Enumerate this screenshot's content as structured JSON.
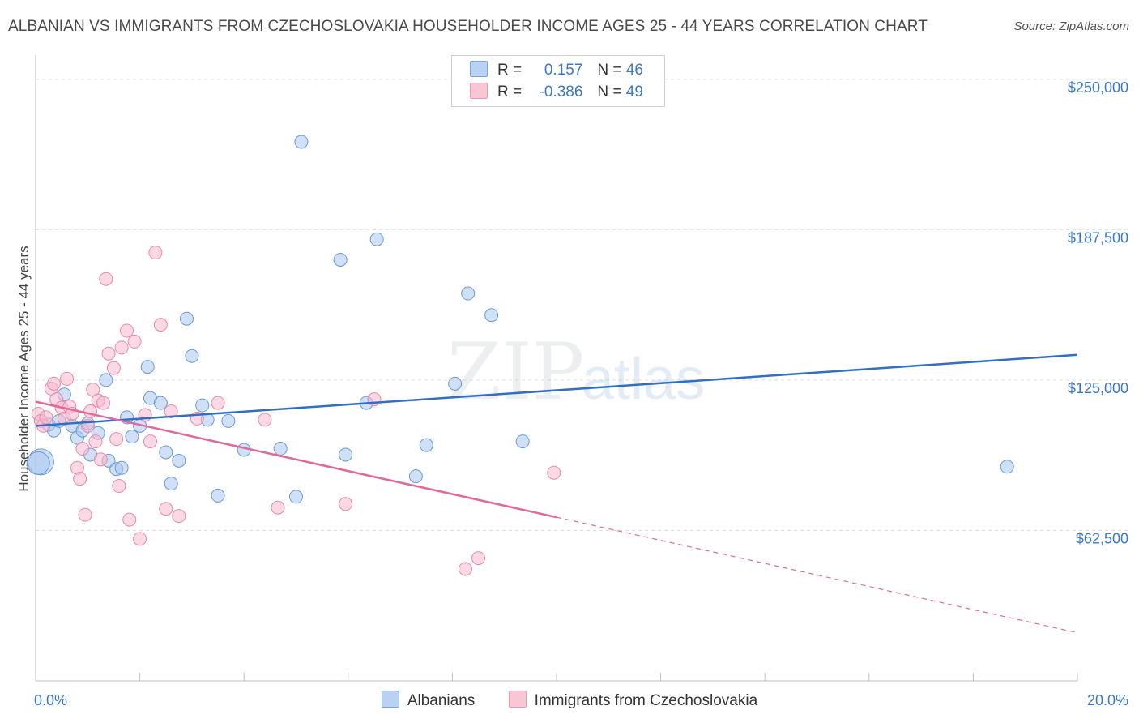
{
  "chart_data": {
    "type": "scatter",
    "title": "ALBANIAN VS IMMIGRANTS FROM CZECHOSLOVAKIA HOUSEHOLDER INCOME AGES 25 - 44 YEARS CORRELATION CHART",
    "source": "Source: ZipAtlas.com",
    "xlabel": "",
    "ylabel": "Householder Income Ages 25 - 44 years",
    "xlim": [
      0,
      20
    ],
    "ylim": [
      0,
      256000
    ],
    "x_tick_labels": {
      "min": "0.0%",
      "max": "20.0%"
    },
    "y_ticks": [
      {
        "value": 62500,
        "label": "$62,500"
      },
      {
        "value": 125000,
        "label": "$125,000"
      },
      {
        "value": 187500,
        "label": "$187,500"
      },
      {
        "value": 250000,
        "label": "$250,000"
      }
    ],
    "grid": true,
    "watermark": "ZIPatlas",
    "legend": {
      "rows": [
        {
          "r_label": "R =",
          "r_value": "0.157",
          "n_label": "N =",
          "n_value": "46"
        },
        {
          "r_label": "R =",
          "r_value": "-0.386",
          "n_label": "N =",
          "n_value": "49"
        }
      ]
    },
    "series": [
      {
        "name": "Albanians",
        "color": "#a9c6ee",
        "edge": "#6b9ad6",
        "line_color": "#2f6fc6",
        "trend": {
          "x": [
            0,
            20
          ],
          "y": [
            106000,
            135500
          ]
        },
        "points": [
          [
            0.1,
            91000
          ],
          [
            0.25,
            106500
          ],
          [
            0.35,
            104000
          ],
          [
            0.45,
            108000
          ],
          [
            0.55,
            119000
          ],
          [
            0.7,
            106000
          ],
          [
            0.8,
            101000
          ],
          [
            0.9,
            104000
          ],
          [
            1.0,
            107000
          ],
          [
            1.05,
            94000
          ],
          [
            1.2,
            103000
          ],
          [
            1.35,
            125000
          ],
          [
            1.4,
            91500
          ],
          [
            1.55,
            88000
          ],
          [
            1.65,
            88500
          ],
          [
            1.75,
            109500
          ],
          [
            1.85,
            101500
          ],
          [
            2.0,
            106000
          ],
          [
            2.15,
            130500
          ],
          [
            2.2,
            117500
          ],
          [
            2.4,
            115500
          ],
          [
            2.5,
            95000
          ],
          [
            2.6,
            82000
          ],
          [
            2.75,
            91500
          ],
          [
            2.9,
            150500
          ],
          [
            3.0,
            135000
          ],
          [
            3.2,
            114500
          ],
          [
            3.3,
            108500
          ],
          [
            3.7,
            108000
          ],
          [
            3.5,
            77000
          ],
          [
            4.0,
            96000
          ],
          [
            5.1,
            224000
          ],
          [
            5.0,
            76500
          ],
          [
            5.85,
            175000
          ],
          [
            5.95,
            94000
          ],
          [
            6.35,
            115500
          ],
          [
            6.55,
            183500
          ],
          [
            7.3,
            85000
          ],
          [
            7.5,
            98000
          ],
          [
            8.05,
            123500
          ],
          [
            8.3,
            161000
          ],
          [
            8.75,
            152000
          ],
          [
            9.35,
            99500
          ],
          [
            18.65,
            89000
          ],
          [
            4.7,
            96500
          ],
          [
            0.05,
            90500
          ]
        ]
      },
      {
        "name": "Immigrants from Czechoslovakia",
        "color": "#f7b9cd",
        "edge": "#e889aa",
        "line_color": "#e0699a",
        "trend": {
          "x": [
            0,
            10
          ],
          "y": [
            116000,
            68000
          ]
        },
        "trend_extended": {
          "x": [
            10,
            20
          ],
          "y": [
            68000,
            20000
          ]
        },
        "points": [
          [
            0.05,
            111000
          ],
          [
            0.1,
            108000
          ],
          [
            0.15,
            106000
          ],
          [
            0.2,
            109500
          ],
          [
            0.3,
            121500
          ],
          [
            0.35,
            123500
          ],
          [
            0.4,
            117000
          ],
          [
            0.5,
            113500
          ],
          [
            0.55,
            109000
          ],
          [
            0.6,
            125500
          ],
          [
            0.65,
            114000
          ],
          [
            0.7,
            111000
          ],
          [
            0.8,
            88500
          ],
          [
            0.85,
            84000
          ],
          [
            0.9,
            96500
          ],
          [
            0.95,
            69000
          ],
          [
            1.0,
            106000
          ],
          [
            1.05,
            112000
          ],
          [
            1.1,
            121000
          ],
          [
            1.15,
            99500
          ],
          [
            1.2,
            116500
          ],
          [
            1.25,
            92000
          ],
          [
            1.3,
            115500
          ],
          [
            1.35,
            167000
          ],
          [
            1.4,
            136000
          ],
          [
            1.5,
            130000
          ],
          [
            1.55,
            100500
          ],
          [
            1.6,
            81000
          ],
          [
            1.65,
            138500
          ],
          [
            1.75,
            145500
          ],
          [
            1.8,
            67000
          ],
          [
            1.9,
            141000
          ],
          [
            2.0,
            59000
          ],
          [
            2.1,
            110500
          ],
          [
            2.2,
            99500
          ],
          [
            2.3,
            178000
          ],
          [
            2.4,
            148000
          ],
          [
            2.5,
            71500
          ],
          [
            2.6,
            112000
          ],
          [
            2.75,
            68500
          ],
          [
            3.1,
            109000
          ],
          [
            3.5,
            115500
          ],
          [
            4.4,
            108500
          ],
          [
            4.65,
            72000
          ],
          [
            5.95,
            73500
          ],
          [
            6.5,
            117000
          ],
          [
            8.25,
            46500
          ],
          [
            8.5,
            51000
          ],
          [
            9.95,
            86500
          ]
        ]
      }
    ]
  }
}
